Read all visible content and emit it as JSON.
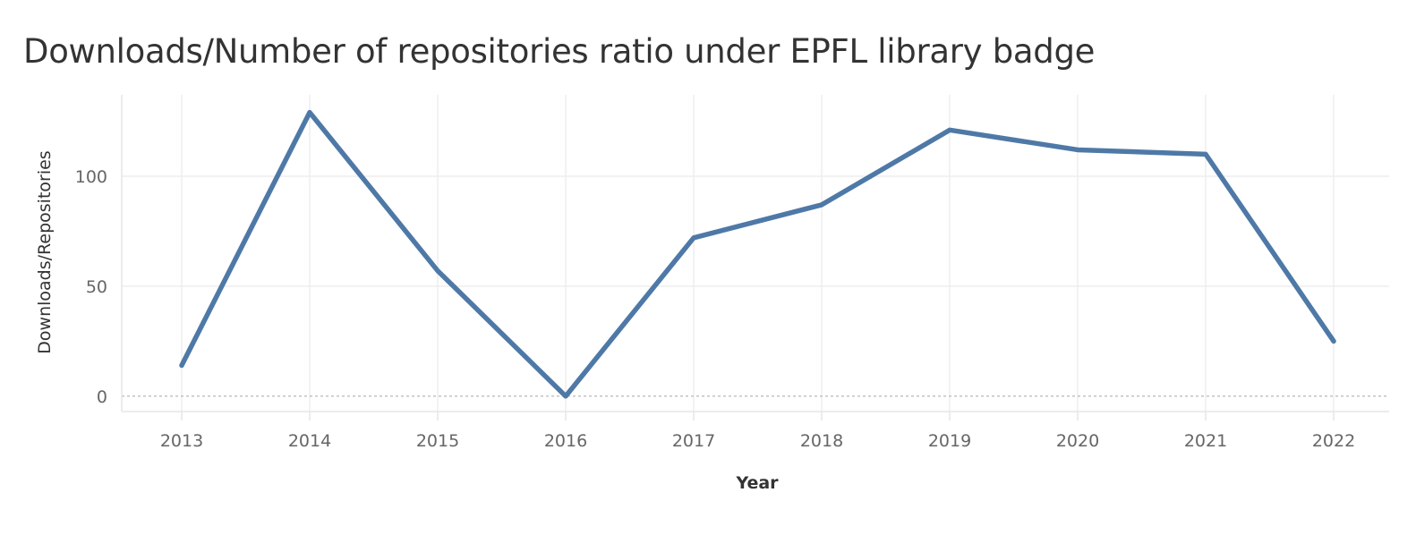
{
  "chart_data": {
    "type": "line",
    "title": "Downloads/Number of repositories ratio under EPFL library badge",
    "xlabel": "Year",
    "ylabel": "Downloads/Repositories",
    "x": [
      "2013",
      "2014",
      "2015",
      "2016",
      "2017",
      "2018",
      "2019",
      "2020",
      "2021",
      "2022"
    ],
    "series": [
      {
        "values": [
          14,
          129,
          57,
          0,
          72,
          87,
          121,
          112,
          110,
          25
        ]
      }
    ],
    "yticks": [
      0,
      50,
      100
    ],
    "ylim": [
      -7,
      137
    ],
    "grid": true,
    "zero_line": "dashed",
    "colors": {
      "line": "#4e79a7",
      "grid": "#eeeeee",
      "zero_line": "#b0b0b0",
      "axis": "#e6e6e6"
    }
  }
}
